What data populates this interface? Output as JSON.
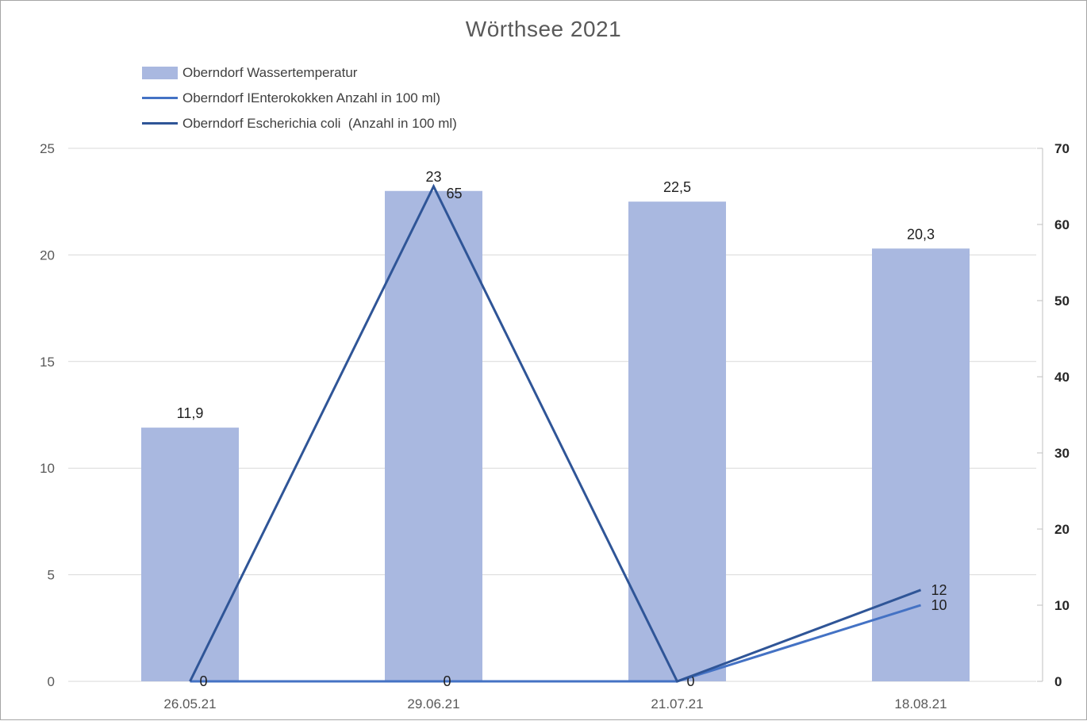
{
  "chart_data": {
    "type": "combo",
    "title": "Wörthsee 2021",
    "categories": [
      "26.05.21",
      "29.06.21",
      "21.07.21",
      "18.08.21"
    ],
    "series": [
      {
        "name": "Oberndorf Wassertemperatur",
        "type": "bar",
        "axis": "left",
        "color": "#a9b8e0",
        "values": [
          11.9,
          23,
          22.5,
          20.3
        ],
        "labels": [
          "11,9",
          "23",
          "22,5",
          "20,3"
        ]
      },
      {
        "name": "Oberndorf IEnterokokken Anzahl in 100 ml)",
        "type": "line",
        "axis": "right",
        "color": "#4472c4",
        "values": [
          0,
          0,
          0,
          10
        ],
        "labels": [
          "0",
          "0",
          "0",
          "10"
        ]
      },
      {
        "name": "Oberndorf Escherichia coli  (Anzahl in 100 ml)",
        "type": "line",
        "axis": "right",
        "color": "#2f5597",
        "values": [
          0,
          65,
          0,
          12
        ],
        "labels": [
          "0",
          "65",
          "0",
          "12"
        ]
      }
    ],
    "left_axis": {
      "min": 0,
      "max": 25,
      "step": 5,
      "ticks": [
        "0",
        "5",
        "10",
        "15",
        "20",
        "25"
      ]
    },
    "right_axis": {
      "min": 0,
      "max": 70,
      "step": 10,
      "ticks": [
        "0",
        "10",
        "20",
        "30",
        "40",
        "50",
        "60",
        "70"
      ]
    },
    "grid": true,
    "legend_position": "top-left",
    "colors": {
      "title_text": "#595959",
      "axis_text_left": "#595959",
      "axis_text_right": "#262626",
      "data_label_text": "#1f1f1f",
      "gridline": "#d9d9d9",
      "right_axis_line": "#bfbfbf"
    }
  }
}
